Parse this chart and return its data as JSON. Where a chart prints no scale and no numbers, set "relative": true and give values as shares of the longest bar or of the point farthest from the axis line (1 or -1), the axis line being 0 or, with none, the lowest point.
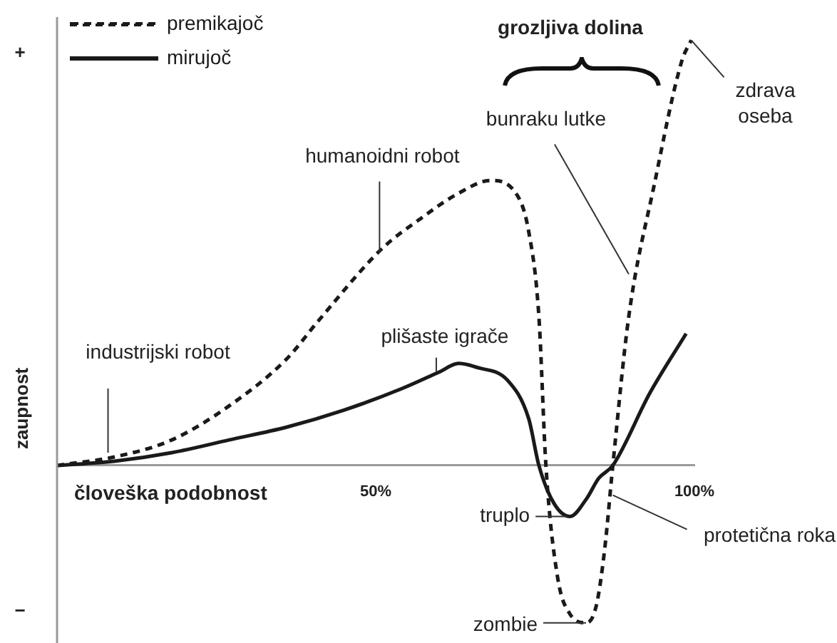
{
  "chart_data": {
    "type": "line",
    "relative": true,
    "xlabel": "človeška podobnost",
    "ylabel": "zaupnost",
    "xlim": [
      0,
      100
    ],
    "xticks": [
      {
        "value": 50,
        "label": "50%"
      },
      {
        "value": 100,
        "label": "100%"
      }
    ],
    "grid": false,
    "legend": "top left",
    "marker": "none",
    "series": [
      {
        "name": "premikajoč",
        "color": "#1a1a1a",
        "line_style": "dashed",
        "x": [
          0,
          9,
          18,
          27,
          36,
          41,
          51,
          57,
          63,
          68,
          72,
          74,
          75.6,
          76.7,
          78.5,
          80.5,
          83,
          84.6,
          85.9,
          87.2,
          89.7,
          93.7,
          98,
          99.5
        ],
        "values": [
          0,
          0.02,
          0.06,
          0.14,
          0.25,
          0.34,
          0.51,
          0.58,
          0.64,
          0.67,
          0.64,
          0.55,
          0.35,
          0,
          -0.26,
          -0.35,
          -0.37,
          -0.33,
          -0.2,
          0,
          0.35,
          0.66,
          0.95,
          1
        ]
      },
      {
        "name": "mirujoč",
        "color": "#1a1a1a",
        "line_style": "solid",
        "x": [
          0,
          9,
          18,
          27,
          36,
          45,
          54,
          60,
          63,
          66,
          70.7,
          74,
          75.6,
          78,
          80.5,
          83,
          85,
          87.2,
          93,
          98.7
        ],
        "values": [
          0,
          0.01,
          0.03,
          0.06,
          0.09,
          0.13,
          0.18,
          0.22,
          0.24,
          0.23,
          0.2,
          0.11,
          0,
          -0.09,
          -0.12,
          -0.08,
          -0.03,
          0,
          0.17,
          0.31
        ]
      }
    ],
    "annotations": [
      "+",
      "−",
      "grozljiva dolina",
      {
        "text": "industrijski robot",
        "x": 8,
        "y": 0.03
      },
      {
        "text": "humanoidni robot",
        "x": 50.6,
        "y": 0.5
      },
      {
        "text": "plišaste igrače",
        "x": 59.5,
        "y": 0.22
      },
      {
        "text": "bunraku lutke",
        "x": 89.7,
        "y": 0.45
      },
      {
        "text": "zdrava oseba",
        "x": 99.5,
        "y": 1
      },
      {
        "text": "truplo",
        "x": 80,
        "y": -0.12
      },
      {
        "text": "protetična roka",
        "x": 87.2,
        "y": -0.07
      },
      {
        "text": "zombie",
        "x": 83,
        "y": -0.37
      }
    ]
  }
}
